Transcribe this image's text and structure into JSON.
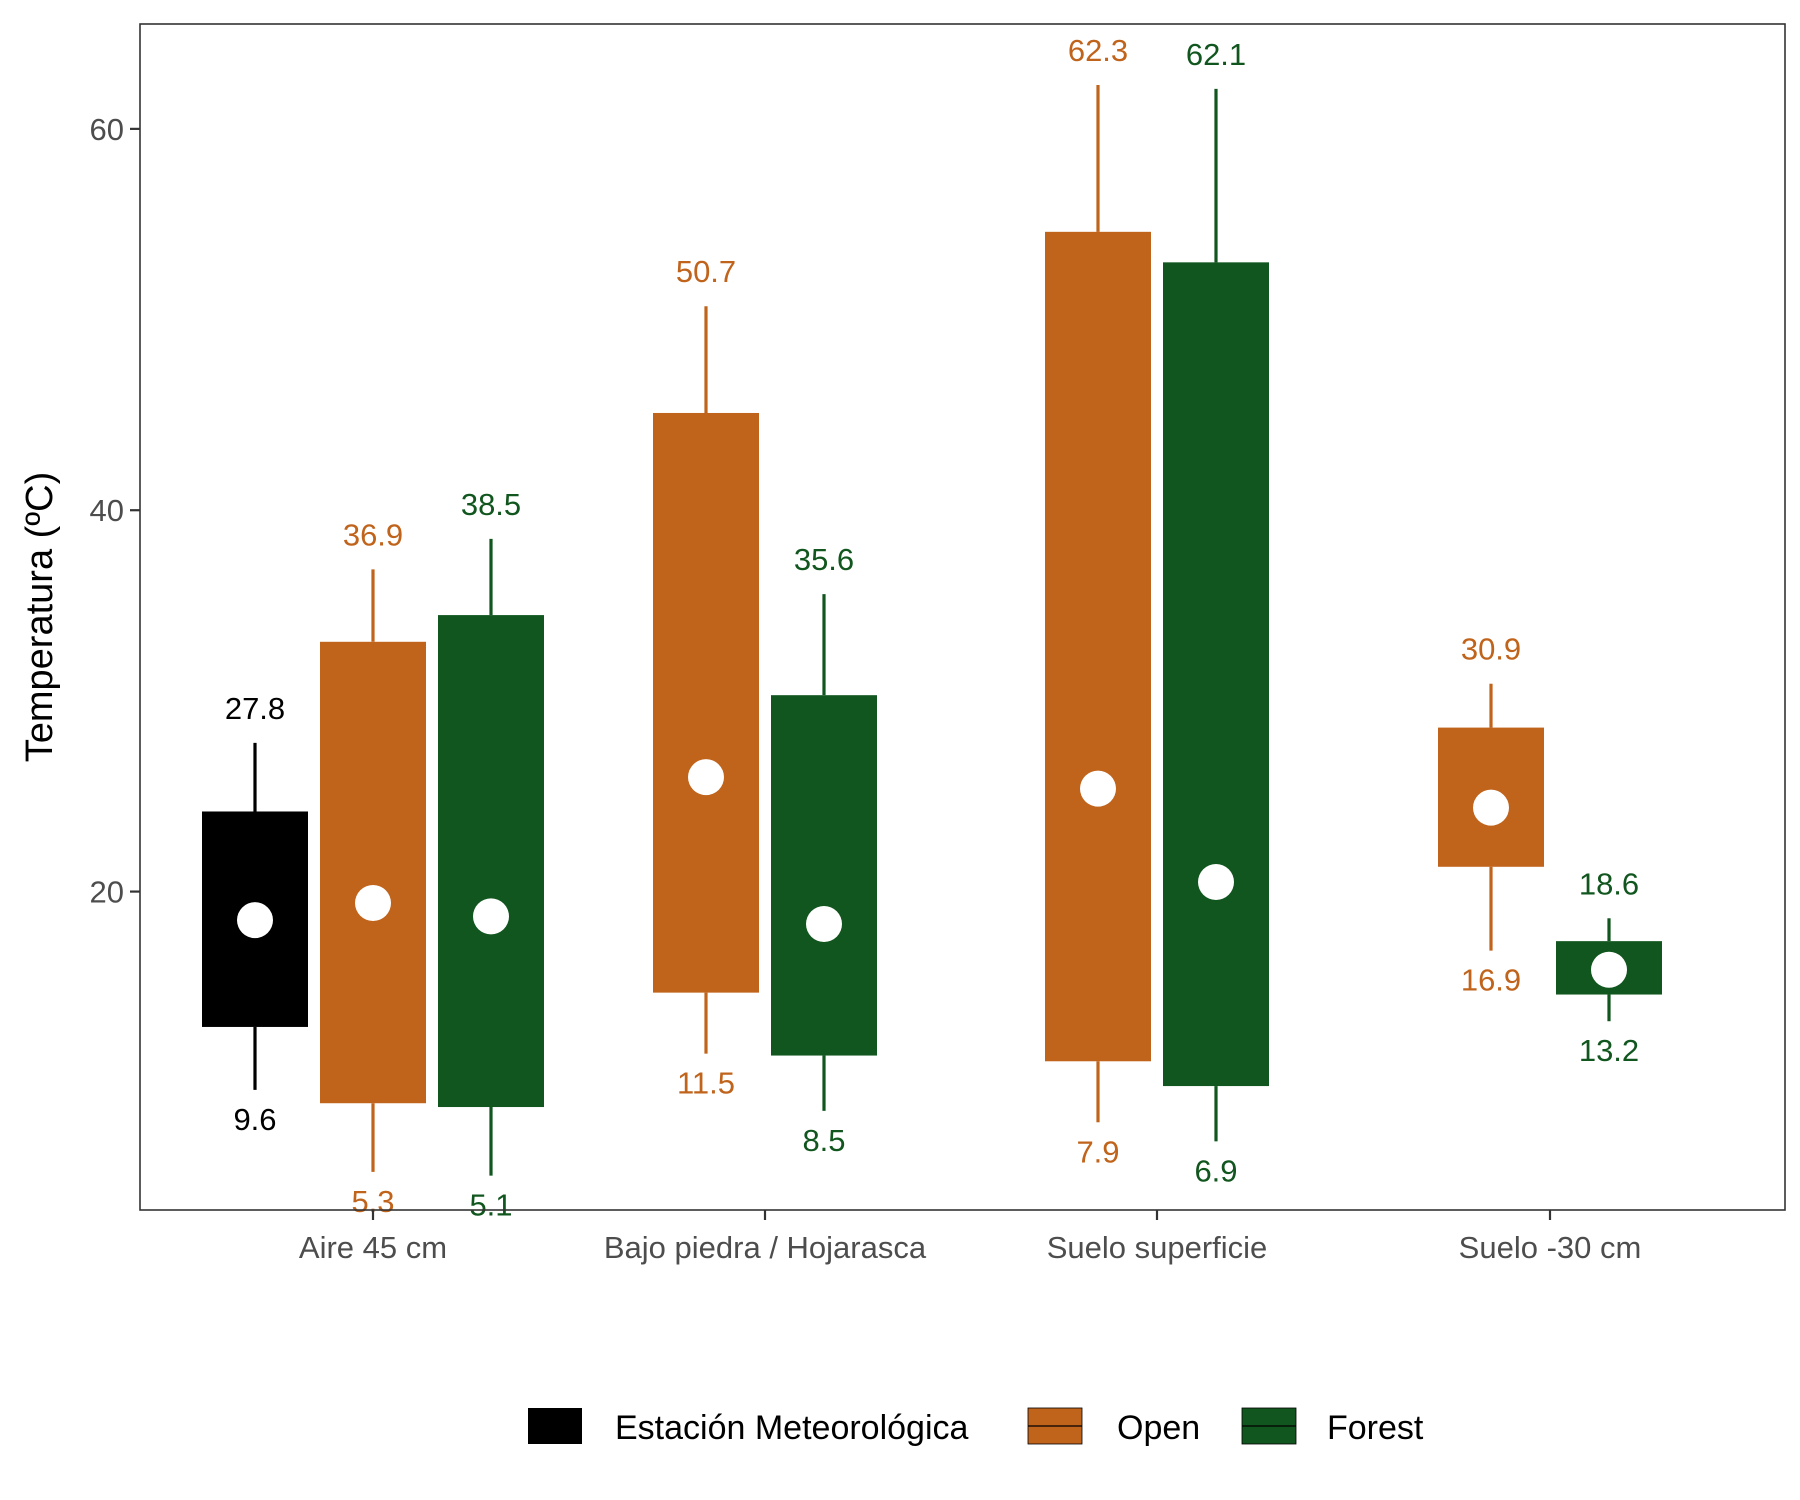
{
  "chart_data": {
    "type": "box",
    "ylabel": "Temperatura (ºC)",
    "xlabel": "",
    "ylim": [
      3.3,
      65.5
    ],
    "yticks": [
      20,
      40,
      60
    ],
    "grid": false,
    "legend_position": "bottom",
    "categories": [
      "Aire 45 cm",
      "Bajo piedra / Hojarasca",
      "Suelo superficie",
      "Suelo -30 cm"
    ],
    "series": [
      {
        "name": "Estación Meteorológica",
        "color": "#000000",
        "label_color": "#000000"
      },
      {
        "name": "Open",
        "color": "#c0631b",
        "label_color": "#c0631b"
      },
      {
        "name": "Forest",
        "color": "#11561e",
        "label_color": "#11561e"
      }
    ],
    "boxes": [
      {
        "category": 0,
        "series": 0,
        "slot": 0,
        "min": 9.6,
        "q1": 12.9,
        "mean": 18.5,
        "q3": 24.2,
        "max": 27.8,
        "min_label": "9.6",
        "max_label": "27.8"
      },
      {
        "category": 0,
        "series": 1,
        "slot": 1,
        "min": 5.3,
        "q1": 8.9,
        "mean": 19.4,
        "q3": 33.1,
        "max": 36.9,
        "min_label": "5.3",
        "max_label": "36.9"
      },
      {
        "category": 0,
        "series": 2,
        "slot": 2,
        "min": 5.1,
        "q1": 8.7,
        "mean": 18.7,
        "q3": 34.5,
        "max": 38.5,
        "min_label": "5.1",
        "max_label": "38.5"
      },
      {
        "category": 1,
        "series": 1,
        "slot": 0,
        "min": 11.5,
        "q1": 14.7,
        "mean": 26.0,
        "q3": 45.1,
        "max": 50.7,
        "min_label": "11.5",
        "max_label": "50.7"
      },
      {
        "category": 1,
        "series": 2,
        "slot": 1,
        "min": 8.5,
        "q1": 11.4,
        "mean": 18.3,
        "q3": 30.3,
        "max": 35.6,
        "min_label": "8.5",
        "max_label": "35.6"
      },
      {
        "category": 2,
        "series": 1,
        "slot": 0,
        "min": 7.9,
        "q1": 11.1,
        "mean": 25.4,
        "q3": 54.6,
        "max": 62.3,
        "min_label": "7.9",
        "max_label": "62.3"
      },
      {
        "category": 2,
        "series": 2,
        "slot": 1,
        "min": 6.9,
        "q1": 9.8,
        "mean": 20.5,
        "q3": 53.0,
        "max": 62.1,
        "min_label": "6.9",
        "max_label": "62.1"
      },
      {
        "category": 3,
        "series": 1,
        "slot": 0,
        "min": 16.9,
        "q1": 21.3,
        "mean": 24.4,
        "q3": 28.6,
        "max": 30.9,
        "min_label": "16.9",
        "max_label": "30.9"
      },
      {
        "category": 3,
        "series": 2,
        "slot": 1,
        "min": 13.2,
        "q1": 14.6,
        "mean": 15.9,
        "q3": 17.4,
        "max": 18.6,
        "min_label": "13.2",
        "max_label": "18.6"
      }
    ]
  }
}
